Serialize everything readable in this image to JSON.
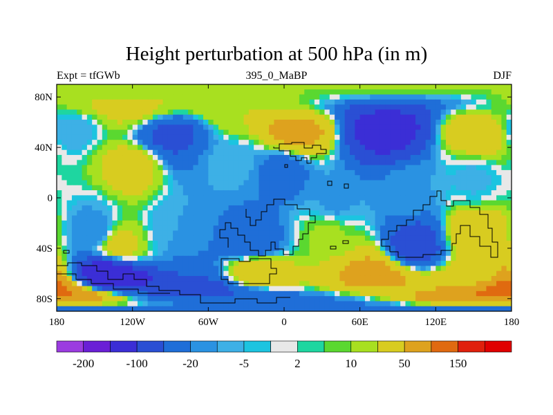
{
  "chart_data": {
    "type": "heatmap",
    "title": "Height perturbation at 500 hPa (in m)",
    "subtitle_left": "Expt = tfGWb",
    "subtitle_center": "395_0_MaBP",
    "subtitle_right": "DJF",
    "x_ticks": [
      "180",
      "120W",
      "60W",
      "0",
      "60E",
      "120E",
      "180"
    ],
    "y_ticks": [
      "80N",
      "40N",
      "0",
      "40S",
      "80S"
    ],
    "xlim": [
      -180,
      180
    ],
    "ylim": [
      -90,
      90
    ],
    "colorbar": {
      "levels": [
        -200,
        -150,
        -100,
        -50,
        -20,
        -10,
        -5,
        -2,
        2,
        5,
        10,
        20,
        50,
        100,
        150,
        200
      ],
      "labels": [
        "-200",
        "-100",
        "-20",
        "-5",
        "2",
        "10",
        "50",
        "150"
      ],
      "colors": [
        "#9b3ce0",
        "#6a1fd6",
        "#3b2ed6",
        "#2a4fd4",
        "#1f6ed8",
        "#2a92e2",
        "#3db0e6",
        "#1cc4e0",
        "#e8e8e8",
        "#1ed6a0",
        "#5ad830",
        "#a8e020",
        "#d8cc20",
        "#dea21e",
        "#e06a10",
        "#e0200c",
        "#e00000"
      ]
    },
    "field_centers": [
      {
        "lon": -125,
        "lat": 68,
        "value": 25
      },
      {
        "lon": -40,
        "lat": 68,
        "value": 20
      },
      {
        "lon": -90,
        "lat": 50,
        "value": -60
      },
      {
        "lon": -170,
        "lat": 55,
        "value": -10
      },
      {
        "lon": 10,
        "lat": 52,
        "value": 60
      },
      {
        "lon": 80,
        "lat": 55,
        "value": -120
      },
      {
        "lon": 155,
        "lat": 52,
        "value": 40
      },
      {
        "lon": -120,
        "lat": 25,
        "value": 30
      },
      {
        "lon": -40,
        "lat": 28,
        "value": -8
      },
      {
        "lon": 0,
        "lat": 22,
        "value": -30
      },
      {
        "lon": 40,
        "lat": -5,
        "value": -12
      },
      {
        "lon": 100,
        "lat": 5,
        "value": -10
      },
      {
        "lon": 150,
        "lat": 15,
        "value": -6
      },
      {
        "lon": -150,
        "lat": -28,
        "value": -15
      },
      {
        "lon": -130,
        "lat": -38,
        "value": 30
      },
      {
        "lon": -85,
        "lat": -25,
        "value": -10
      },
      {
        "lon": -25,
        "lat": -35,
        "value": -40
      },
      {
        "lon": 35,
        "lat": -28,
        "value": 12
      },
      {
        "lon": 105,
        "lat": -38,
        "value": -70
      },
      {
        "lon": 150,
        "lat": -30,
        "value": 40
      },
      {
        "lon": -140,
        "lat": -62,
        "value": -150
      },
      {
        "lon": -60,
        "lat": -72,
        "value": -60
      },
      {
        "lon": -20,
        "lat": -60,
        "value": 50
      },
      {
        "lon": 70,
        "lat": -60,
        "value": 60
      },
      {
        "lon": 150,
        "lat": -62,
        "value": 30
      },
      {
        "lon": 175,
        "lat": -72,
        "value": 120
      },
      {
        "lon": 0,
        "lat": -85,
        "value": -30
      }
    ]
  }
}
